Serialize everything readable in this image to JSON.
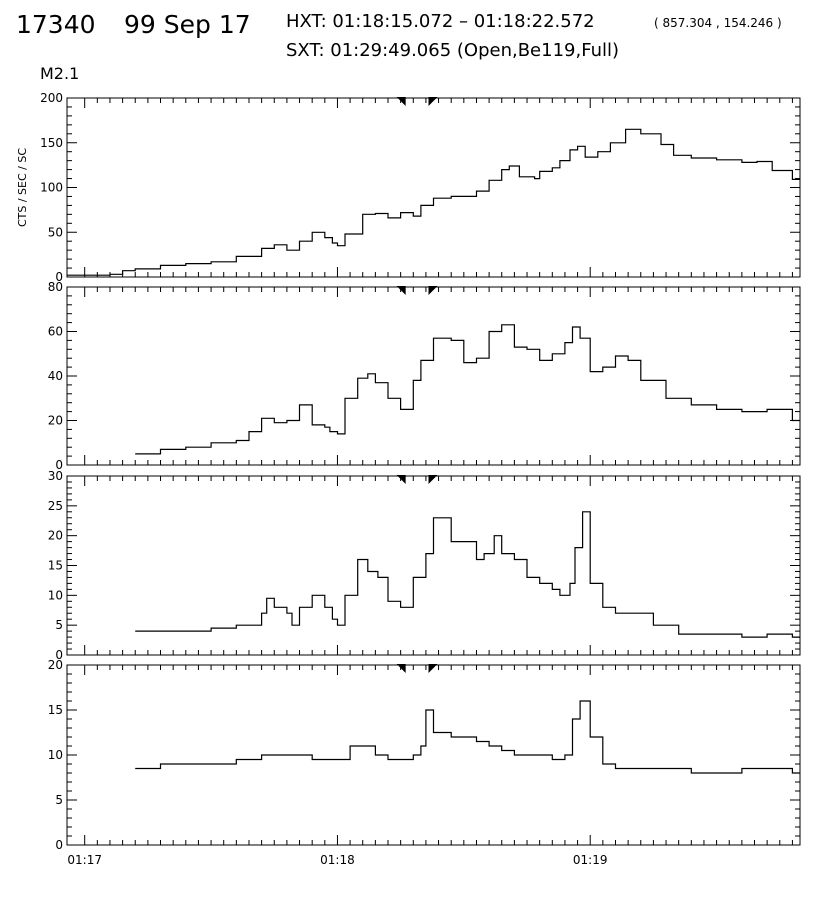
{
  "header": {
    "event_id": "17340",
    "date": "99 Sep 17",
    "hxt_line": "HXT: 01:18:15.072 – 01:18:22.572",
    "coords": "( 857.304 , 154.246 )",
    "sxt_line": "SXT: 01:29:49.065 (Open,Be119,Full)",
    "goes_class": "M2.1"
  },
  "chart_data": {
    "type": "line",
    "step": true,
    "x_unit": "minutes since 01:16",
    "xlim": [
      0.93,
      3.83
    ],
    "x_ticks": [
      {
        "value": 1,
        "label": "01:17"
      },
      {
        "value": 2,
        "label": "01:18"
      },
      {
        "value": 3,
        "label": "01:19"
      }
    ],
    "hxt_interval_markers": [
      2.254,
      2.376
    ],
    "panels": [
      {
        "ylabel": "CTS / SEC / SC",
        "ylim": [
          0,
          200
        ],
        "y_ticks": [
          0,
          50,
          100,
          150,
          200
        ],
        "start_x": 0.93,
        "x": [
          0.93,
          1.1,
          1.15,
          1.2,
          1.3,
          1.4,
          1.5,
          1.6,
          1.7,
          1.75,
          1.8,
          1.85,
          1.9,
          1.95,
          1.98,
          2.0,
          2.03,
          2.1,
          2.15,
          2.2,
          2.25,
          2.3,
          2.33,
          2.38,
          2.45,
          2.55,
          2.6,
          2.65,
          2.68,
          2.72,
          2.78,
          2.8,
          2.85,
          2.88,
          2.92,
          2.95,
          2.98,
          3.03,
          3.08,
          3.14,
          3.2,
          3.28,
          3.33,
          3.4,
          3.5,
          3.6,
          3.66,
          3.72,
          3.8
        ],
        "values": [
          2,
          3,
          7,
          9,
          13,
          15,
          17,
          23,
          32,
          36,
          30,
          40,
          50,
          44,
          38,
          35,
          48,
          70,
          71,
          66,
          72,
          68,
          80,
          88,
          90,
          96,
          108,
          120,
          124,
          112,
          110,
          118,
          122,
          130,
          142,
          146,
          134,
          140,
          150,
          165,
          160,
          148,
          136,
          133,
          131,
          128,
          129,
          119,
          109
        ]
      },
      {
        "ylabel": "",
        "ylim": [
          0,
          80
        ],
        "y_ticks": [
          0,
          20,
          40,
          60,
          80
        ],
        "start_x": 1.2,
        "x": [
          1.2,
          1.3,
          1.4,
          1.5,
          1.6,
          1.65,
          1.7,
          1.75,
          1.8,
          1.85,
          1.9,
          1.95,
          1.97,
          2.0,
          2.03,
          2.08,
          2.12,
          2.15,
          2.2,
          2.25,
          2.3,
          2.33,
          2.38,
          2.45,
          2.5,
          2.55,
          2.6,
          2.65,
          2.7,
          2.75,
          2.8,
          2.85,
          2.9,
          2.93,
          2.96,
          3.0,
          3.05,
          3.1,
          3.15,
          3.2,
          3.3,
          3.4,
          3.5,
          3.6,
          3.7,
          3.8
        ],
        "values": [
          5,
          7,
          8,
          10,
          11,
          15,
          21,
          19,
          20,
          27,
          18,
          17,
          15,
          14,
          30,
          39,
          41,
          37,
          30,
          25,
          38,
          47,
          57,
          56,
          46,
          48,
          60,
          63,
          53,
          52,
          47,
          50,
          55,
          62,
          57,
          42,
          44,
          49,
          47,
          38,
          30,
          27,
          25,
          24,
          25,
          20
        ]
      },
      {
        "ylabel": "",
        "ylim": [
          0,
          30
        ],
        "y_ticks": [
          0,
          5,
          10,
          15,
          20,
          25,
          30
        ],
        "start_x": 1.2,
        "x": [
          1.2,
          1.3,
          1.4,
          1.5,
          1.6,
          1.7,
          1.72,
          1.75,
          1.8,
          1.82,
          1.85,
          1.9,
          1.95,
          1.98,
          2.0,
          2.03,
          2.08,
          2.12,
          2.16,
          2.2,
          2.25,
          2.3,
          2.35,
          2.38,
          2.45,
          2.5,
          2.55,
          2.58,
          2.62,
          2.65,
          2.7,
          2.75,
          2.8,
          2.85,
          2.88,
          2.92,
          2.94,
          2.97,
          3.0,
          3.05,
          3.1,
          3.15,
          3.25,
          3.35,
          3.45,
          3.6,
          3.7,
          3.8
        ],
        "values": [
          4,
          4,
          4,
          4.5,
          5,
          7,
          9.5,
          8,
          7,
          5,
          8,
          10,
          8,
          6,
          5,
          10,
          16,
          14,
          13,
          9,
          8,
          13,
          17,
          23,
          19,
          19,
          16,
          17,
          20,
          17,
          16,
          13,
          12,
          11,
          10,
          12,
          18,
          24,
          12,
          8,
          7,
          7,
          5,
          3.5,
          3.5,
          3,
          3.5,
          3
        ]
      },
      {
        "ylabel": "",
        "ylim": [
          0,
          20
        ],
        "y_ticks": [
          0,
          5,
          10,
          15,
          20
        ],
        "start_x": 1.2,
        "x": [
          1.2,
          1.3,
          1.4,
          1.5,
          1.6,
          1.7,
          1.8,
          1.9,
          2.0,
          2.05,
          2.1,
          2.15,
          2.2,
          2.25,
          2.3,
          2.33,
          2.35,
          2.38,
          2.45,
          2.55,
          2.6,
          2.65,
          2.7,
          2.75,
          2.8,
          2.85,
          2.9,
          2.93,
          2.96,
          3.0,
          3.05,
          3.1,
          3.2,
          3.3,
          3.4,
          3.5,
          3.6,
          3.7,
          3.8
        ],
        "values": [
          8.5,
          9,
          9,
          9,
          9.5,
          10,
          10,
          9.5,
          9.5,
          11,
          11,
          10,
          9.5,
          9.5,
          10,
          11,
          15,
          12.5,
          12,
          11.5,
          11,
          10.5,
          10,
          10,
          10,
          9.5,
          10,
          14,
          16,
          12,
          9,
          8.5,
          8.5,
          8.5,
          8,
          8,
          8.5,
          8.5,
          8
        ]
      }
    ]
  }
}
